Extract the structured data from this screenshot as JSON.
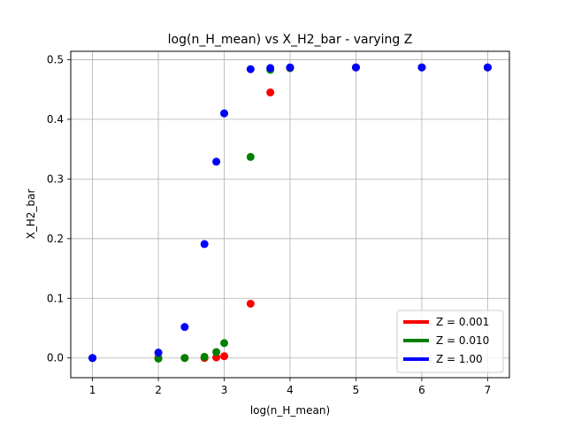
{
  "chart_data": {
    "type": "scatter",
    "title": "log(n_H_mean) vs X_H2_bar - varying Z",
    "xlabel": "log(n_H_mean)",
    "ylabel": "X_H2_bar",
    "xlim": [
      0.67,
      7.33
    ],
    "ylim": [
      -0.033,
      0.514
    ],
    "xticks": [
      1,
      2,
      3,
      4,
      5,
      6,
      7
    ],
    "xtick_labels": [
      "1",
      "2",
      "3",
      "4",
      "5",
      "6",
      "7"
    ],
    "yticks": [
      0.0,
      0.1,
      0.2,
      0.3,
      0.4,
      0.5
    ],
    "ytick_labels": [
      "0.0",
      "0.1",
      "0.2",
      "0.3",
      "0.4",
      "0.5"
    ],
    "grid": true,
    "legend_position": "lower-right",
    "series": [
      {
        "name": "Z = 0.001",
        "color": "#ff0000",
        "points": [
          {
            "x": 1.0,
            "y": 0.0
          },
          {
            "x": 2.0,
            "y": 0.0
          },
          {
            "x": 2.4,
            "y": 0.0
          },
          {
            "x": 2.7,
            "y": 0.0
          },
          {
            "x": 2.88,
            "y": 0.001
          },
          {
            "x": 3.0,
            "y": 0.003
          },
          {
            "x": 3.4,
            "y": 0.091
          },
          {
            "x": 3.7,
            "y": 0.445
          },
          {
            "x": 4.0,
            "y": 0.486
          },
          {
            "x": 5.0,
            "y": 0.487
          },
          {
            "x": 6.0,
            "y": 0.487
          },
          {
            "x": 7.0,
            "y": 0.487
          }
        ]
      },
      {
        "name": "Z = 0.010",
        "color": "#008000",
        "points": [
          {
            "x": 1.0,
            "y": 0.0
          },
          {
            "x": 2.0,
            "y": -0.001
          },
          {
            "x": 2.4,
            "y": 0.0
          },
          {
            "x": 2.7,
            "y": 0.002
          },
          {
            "x": 2.88,
            "y": 0.01
          },
          {
            "x": 3.0,
            "y": 0.025
          },
          {
            "x": 3.4,
            "y": 0.337
          },
          {
            "x": 3.7,
            "y": 0.483
          },
          {
            "x": 4.0,
            "y": 0.486
          },
          {
            "x": 5.0,
            "y": 0.487
          },
          {
            "x": 6.0,
            "y": 0.487
          },
          {
            "x": 7.0,
            "y": 0.487
          }
        ]
      },
      {
        "name": "Z = 1.00",
        "color": "#0000ff",
        "points": [
          {
            "x": 1.0,
            "y": 0.0
          },
          {
            "x": 2.0,
            "y": 0.009
          },
          {
            "x": 2.4,
            "y": 0.052
          },
          {
            "x": 2.7,
            "y": 0.191
          },
          {
            "x": 2.88,
            "y": 0.329
          },
          {
            "x": 3.0,
            "y": 0.41
          },
          {
            "x": 3.4,
            "y": 0.484
          },
          {
            "x": 3.7,
            "y": 0.486
          },
          {
            "x": 4.0,
            "y": 0.487
          },
          {
            "x": 5.0,
            "y": 0.487
          },
          {
            "x": 6.0,
            "y": 0.487
          },
          {
            "x": 7.0,
            "y": 0.487
          }
        ]
      }
    ]
  }
}
